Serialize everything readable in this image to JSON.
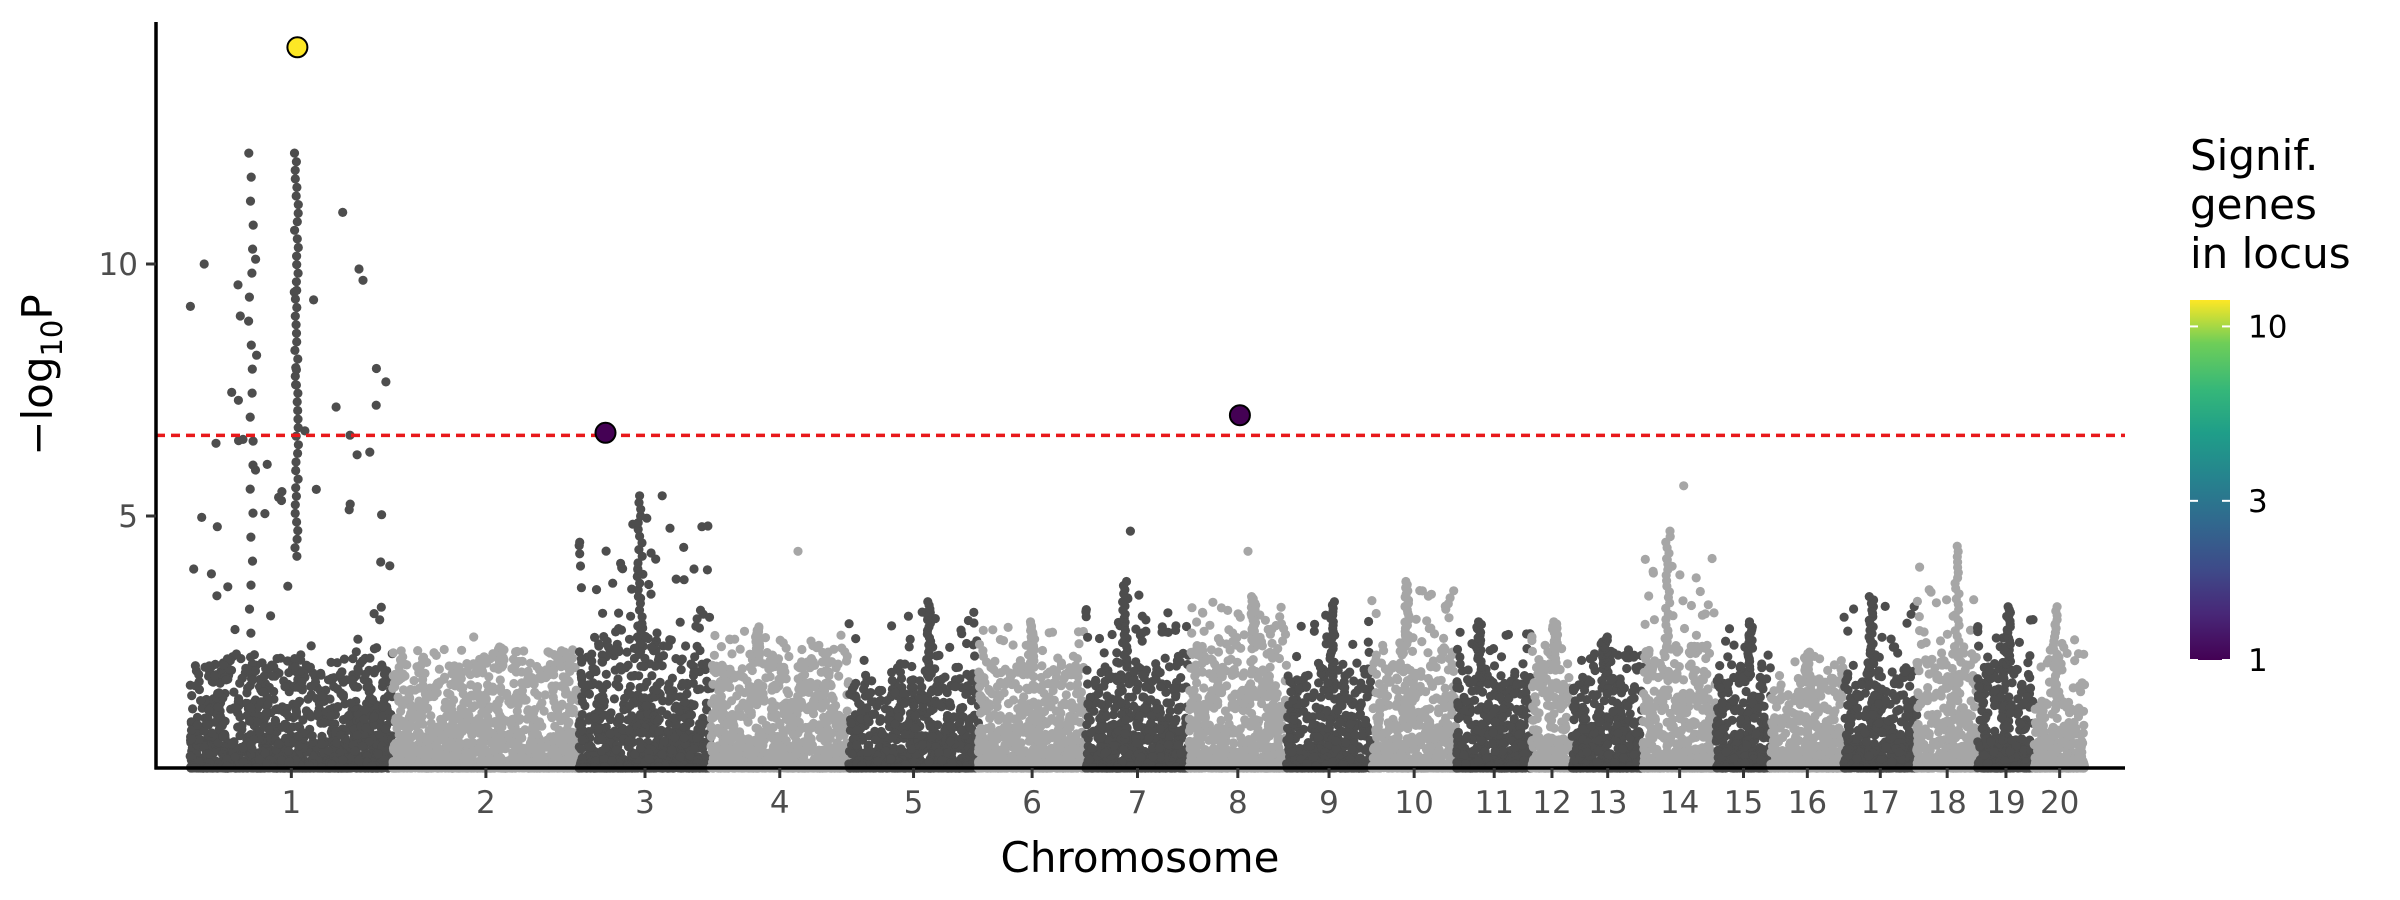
{
  "chart_data": {
    "type": "scatter",
    "title": "",
    "xlabel": "Chromosome",
    "ylabel_main": "−log",
    "ylabel_sub": "10",
    "ylabel_tail": "P",
    "ylim": [
      0,
      14.8
    ],
    "yticks": [
      5,
      10
    ],
    "significance_threshold": 6.6,
    "threshold_color": "#e8191b",
    "chromosome_colors": [
      "#4d4d4d",
      "#a6a6a6"
    ],
    "chromosomes": [
      {
        "label": "1",
        "start": 0,
        "end": 1.0,
        "peak": 12.2,
        "base": 2.2
      },
      {
        "label": "2",
        "start": 1.0,
        "end": 1.92,
        "peak": 2.4,
        "base": 2.0
      },
      {
        "label": "3",
        "start": 1.92,
        "end": 2.57,
        "peak": 5.4,
        "base": 2.6
      },
      {
        "label": "4",
        "start": 2.57,
        "end": 3.25,
        "peak": 2.8,
        "base": 2.1
      },
      {
        "label": "5",
        "start": 3.25,
        "end": 3.89,
        "peak": 3.3,
        "base": 1.8
      },
      {
        "label": "6",
        "start": 3.89,
        "end": 4.42,
        "peak": 2.9,
        "base": 2.0
      },
      {
        "label": "7",
        "start": 4.42,
        "end": 4.93,
        "peak": 3.7,
        "base": 2.0
      },
      {
        "label": "8",
        "start": 4.93,
        "end": 5.41,
        "peak": 3.4,
        "base": 2.5
      },
      {
        "label": "9",
        "start": 5.41,
        "end": 5.83,
        "peak": 3.3,
        "base": 1.9
      },
      {
        "label": "10",
        "start": 5.83,
        "end": 6.25,
        "peak": 3.7,
        "base": 2.4
      },
      {
        "label": "11",
        "start": 6.25,
        "end": 6.62,
        "peak": 2.9,
        "base": 1.8
      },
      {
        "label": "12",
        "start": 6.62,
        "end": 6.82,
        "peak": 2.9,
        "base": 2.0
      },
      {
        "label": "13",
        "start": 6.82,
        "end": 7.17,
        "peak": 2.6,
        "base": 1.9
      },
      {
        "label": "14",
        "start": 7.17,
        "end": 7.53,
        "peak": 4.7,
        "base": 2.4
      },
      {
        "label": "15",
        "start": 7.53,
        "end": 7.8,
        "peak": 2.9,
        "base": 1.8
      },
      {
        "label": "16",
        "start": 7.8,
        "end": 8.16,
        "peak": 2.3,
        "base": 1.7
      },
      {
        "label": "17",
        "start": 8.16,
        "end": 8.52,
        "peak": 3.4,
        "base": 2.0
      },
      {
        "label": "18",
        "start": 8.52,
        "end": 8.82,
        "peak": 4.4,
        "base": 2.2
      },
      {
        "label": "19",
        "start": 8.82,
        "end": 9.1,
        "peak": 3.2,
        "base": 2.0
      },
      {
        "label": "20",
        "start": 9.1,
        "end": 9.35,
        "peak": 3.2,
        "base": 1.4
      }
    ],
    "notable_points": [
      {
        "x": 0.07,
        "y": 10.0
      },
      {
        "x": 0.525,
        "y": 7.9
      },
      {
        "x": 0.525,
        "y": 7.6
      },
      {
        "x": 2.33,
        "y": 5.4
      },
      {
        "x": 3.0,
        "y": 4.3
      },
      {
        "x": 4.64,
        "y": 4.7
      },
      {
        "x": 5.22,
        "y": 4.3
      },
      {
        "x": 7.37,
        "y": 5.6
      },
      {
        "x": 2.1,
        "y": 2.7
      },
      {
        "x": 1.4,
        "y": 2.6
      }
    ],
    "lead_snps": [
      {
        "x": 0.53,
        "y": 14.3,
        "signif_genes": 12,
        "color": "#fde725"
      },
      {
        "x": 2.05,
        "y": 6.65,
        "signif_genes": 1,
        "color": "#440154"
      },
      {
        "x": 5.18,
        "y": 7.0,
        "signif_genes": 1,
        "color": "#440154"
      }
    ],
    "legend": {
      "title_lines": [
        "Signif.",
        "genes",
        "in locus"
      ],
      "placement": "right",
      "colormap": "viridis",
      "ticks": [
        {
          "value": 1,
          "label": "1"
        },
        {
          "value": 3,
          "label": "3"
        },
        {
          "value": 10,
          "label": "10"
        }
      ],
      "range": [
        1,
        12
      ]
    }
  }
}
